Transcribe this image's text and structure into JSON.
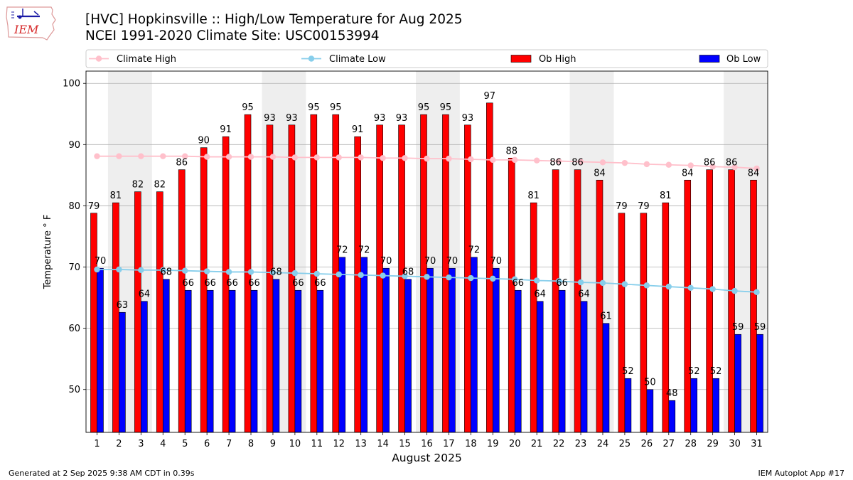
{
  "header": {
    "logo_text": "IEM",
    "title": "[HVC] Hopkinsville :: High/Low Temperature for Aug 2025",
    "subtitle": "NCEI 1991-2020 Climate Site: USC00153994"
  },
  "footer": {
    "generated": "Generated at 2 Sep 2025 9:38 AM CDT in 0.39s",
    "app": "IEM Autoplot App #17"
  },
  "colors": {
    "ob_high": "#ff0000",
    "ob_low": "#0000ff",
    "climate_high": "#ffc0cb",
    "climate_low": "#87ceeb",
    "weekend_band": "#eeeeee",
    "grid": "#b0b0b0"
  },
  "chart_data": {
    "type": "bar",
    "xlabel": "August 2025",
    "ylabel": "Temperature ° F",
    "ylim": [
      43,
      102
    ],
    "yticks": [
      50,
      60,
      70,
      80,
      90,
      100
    ],
    "grid": "y",
    "legend_position": "top",
    "categories": [
      "1",
      "2",
      "3",
      "4",
      "5",
      "6",
      "7",
      "8",
      "9",
      "10",
      "11",
      "12",
      "13",
      "14",
      "15",
      "16",
      "17",
      "18",
      "19",
      "20",
      "21",
      "22",
      "23",
      "24",
      "25",
      "26",
      "27",
      "28",
      "29",
      "30",
      "31"
    ],
    "weekend_bands": [
      [
        2,
        3
      ],
      [
        9,
        10
      ],
      [
        16,
        17
      ],
      [
        23,
        24
      ],
      [
        30,
        31
      ]
    ],
    "series": [
      {
        "name": "Ob High",
        "kind": "bar",
        "values": [
          79,
          81,
          82,
          82,
          86,
          90,
          91,
          95,
          93,
          93,
          95,
          95,
          91,
          93,
          93,
          95,
          95,
          93,
          97,
          88,
          81,
          86,
          86,
          84,
          79,
          79,
          81,
          84,
          86,
          86,
          84
        ],
        "actual": [
          78.8,
          80.5,
          82.3,
          82.3,
          85.9,
          89.5,
          91.3,
          94.9,
          93.2,
          93.2,
          94.9,
          94.9,
          91.3,
          93.2,
          93.2,
          94.9,
          94.9,
          93.2,
          96.8,
          87.8,
          80.5,
          85.9,
          85.9,
          84.2,
          78.8,
          78.8,
          80.5,
          84.2,
          85.9,
          85.9,
          84.2
        ]
      },
      {
        "name": "Ob Low",
        "kind": "bar",
        "values": [
          70,
          63,
          64,
          68,
          66,
          66,
          66,
          66,
          68,
          66,
          66,
          72,
          72,
          70,
          68,
          70,
          70,
          72,
          70,
          66,
          64,
          66,
          64,
          61,
          52,
          50,
          48,
          52,
          52,
          59,
          59
        ],
        "actual": [
          69.8,
          62.6,
          64.4,
          68.0,
          66.2,
          66.2,
          66.2,
          66.2,
          68.0,
          66.2,
          66.2,
          71.6,
          71.6,
          69.8,
          68.0,
          69.8,
          69.8,
          71.6,
          69.8,
          66.2,
          64.4,
          66.2,
          64.4,
          60.8,
          51.8,
          50.0,
          48.2,
          51.8,
          51.8,
          59.0,
          59.0
        ]
      },
      {
        "name": "Climate High",
        "kind": "line",
        "values": [
          88.1,
          88.1,
          88.1,
          88.1,
          88.1,
          88.0,
          88.0,
          88.0,
          88.0,
          87.9,
          87.9,
          87.9,
          87.9,
          87.8,
          87.8,
          87.7,
          87.7,
          87.6,
          87.5,
          87.5,
          87.4,
          87.3,
          87.2,
          87.1,
          87.0,
          86.8,
          86.7,
          86.6,
          86.4,
          86.3,
          86.1
        ]
      },
      {
        "name": "Climate Low",
        "kind": "line",
        "values": [
          69.6,
          69.6,
          69.5,
          69.5,
          69.4,
          69.3,
          69.2,
          69.2,
          69.1,
          69.0,
          68.9,
          68.8,
          68.7,
          68.6,
          68.5,
          68.4,
          68.3,
          68.2,
          68.1,
          68.0,
          67.8,
          67.7,
          67.5,
          67.4,
          67.2,
          67.0,
          66.8,
          66.6,
          66.4,
          66.1,
          65.9
        ]
      }
    ]
  }
}
